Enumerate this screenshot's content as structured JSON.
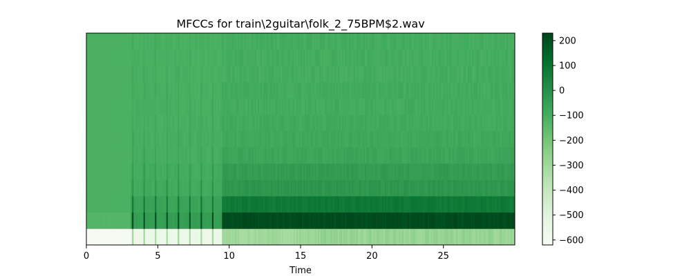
{
  "chart_data": {
    "type": "heatmap",
    "title": "MFCCs for train\\2guitar\\folk_2_75BPM$2.wav",
    "xlabel": "Time",
    "ylabel": "",
    "x_range": [
      0,
      30
    ],
    "x_ticks": [
      0,
      5,
      10,
      15,
      20,
      25
    ],
    "n_coefficients": 13,
    "n_frames": 300,
    "colormap": "Greens",
    "colorbar": {
      "range": [
        -620,
        230
      ],
      "ticks": [
        200,
        100,
        0,
        -100,
        -200,
        -300,
        -400,
        -500,
        -600
      ]
    },
    "coefficient_levels": {
      "silent_region": [
        -610,
        -130,
        -110,
        -110,
        -110,
        -110,
        -110,
        -110,
        -110,
        -110,
        -110,
        -110,
        -110
      ],
      "active_region": [
        -300,
        210,
        80,
        -20,
        -40,
        -70,
        -80,
        -85,
        -90,
        -90,
        -95,
        -95,
        -95
      ]
    },
    "onsets": [
      3.2,
      4.0,
      4.8,
      5.6,
      6.4,
      7.2,
      8.0,
      8.8
    ],
    "sustain_start": 9.5,
    "grid": false
  }
}
